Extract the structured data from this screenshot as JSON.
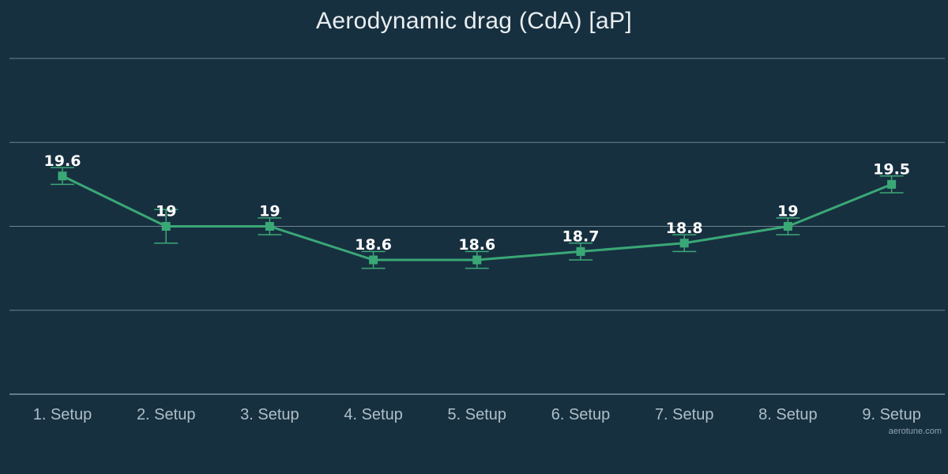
{
  "chart_data": {
    "type": "line",
    "title": "Aerodynamic drag (CdA) [aP]",
    "xlabel": "",
    "ylabel": "",
    "categories": [
      "1. Setup",
      "2. Setup",
      "3. Setup",
      "4. Setup",
      "5. Setup",
      "6. Setup",
      "7. Setup",
      "8. Setup",
      "9. Setup"
    ],
    "series": [
      {
        "values": [
          19.6,
          19,
          19,
          18.6,
          18.6,
          18.7,
          18.8,
          19,
          19.5
        ],
        "error_low": [
          19.5,
          18.8,
          18.9,
          18.5,
          18.5,
          18.6,
          18.7,
          18.9,
          19.4
        ],
        "error_high": [
          19.7,
          19.2,
          19.1,
          18.7,
          18.7,
          18.8,
          18.9,
          19.1,
          19.6
        ],
        "labels": [
          "19.6",
          "19",
          "19",
          "18.6",
          "18.6",
          "18.7",
          "18.8",
          "19",
          "19.5"
        ]
      }
    ],
    "ylim": [
      17,
      21
    ],
    "y_gridlines": [
      17,
      18,
      19,
      20,
      21
    ],
    "grid": true,
    "legend": "none",
    "colors": {
      "background": "#173040",
      "line": "#3aa876",
      "marker": "#3aa876",
      "error_bar": "#3aa876",
      "grid": "#8aa0aa",
      "axis_text": "#aebfc7",
      "data_label": "#ffffff",
      "title": "#e9eef0"
    }
  },
  "watermark": "aerotune.com"
}
